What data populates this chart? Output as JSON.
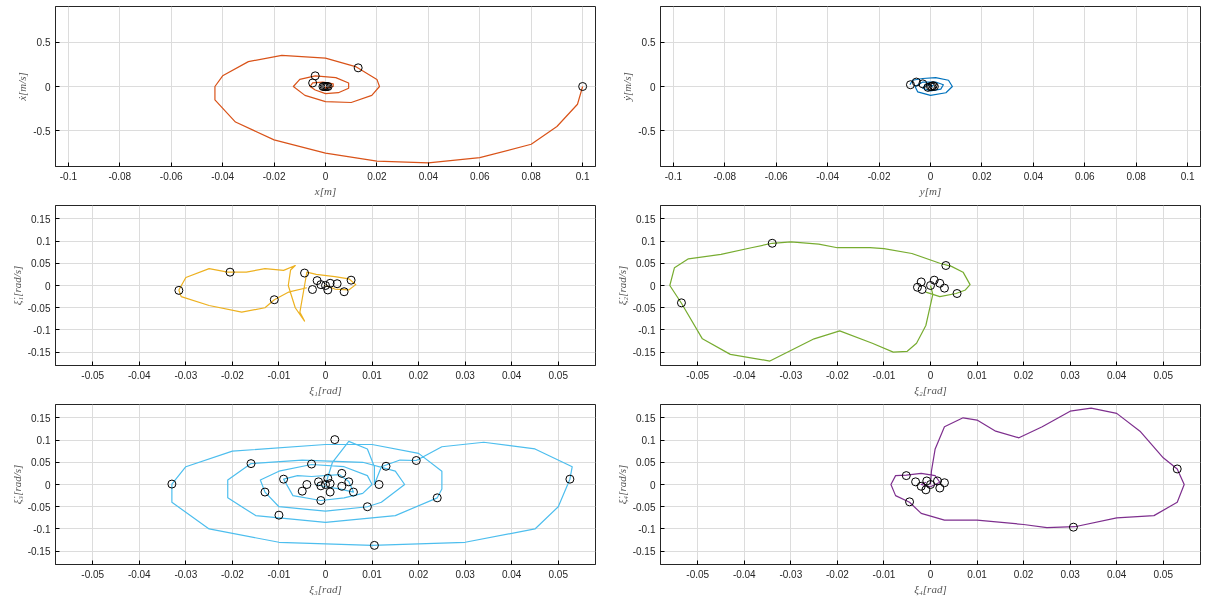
{
  "chart_data": [
    {
      "type": "line",
      "xlabel": "x[m]",
      "ylabel": "ẋ[m/s]",
      "xlim": [
        -0.105,
        0.105
      ],
      "ylim": [
        -0.9,
        0.9
      ],
      "xticks": [
        -0.1,
        -0.08,
        -0.06,
        -0.04,
        -0.02,
        0,
        0.02,
        0.04,
        0.06,
        0.08,
        0.1
      ],
      "yticks": [
        -0.5,
        0,
        0.5
      ],
      "grid": true,
      "series": [
        {
          "type": "line",
          "color": "#d95319",
          "x": [
            0.1,
            0.098,
            0.09,
            0.08,
            0.06,
            0.04,
            0.02,
            0,
            -0.02,
            -0.035,
            -0.043,
            -0.043,
            -0.04,
            -0.03,
            -0.017,
            0,
            0.012,
            0.02,
            0.021,
            0.018,
            0.01,
            0,
            -0.008,
            -0.0125,
            -0.01,
            -0.004,
            0.004,
            0.009,
            0.009,
            0.005,
            0,
            -0.004,
            -0.006,
            -0.005,
            -0.001,
            0.003,
            0.003,
            0,
            0
          ],
          "values": [
            0,
            -0.2,
            -0.45,
            -0.65,
            -0.8,
            -0.86,
            -0.84,
            -0.75,
            -0.6,
            -0.4,
            -0.15,
            0,
            0.12,
            0.28,
            0.35,
            0.32,
            0.22,
            0.08,
            0,
            -0.1,
            -0.18,
            -0.17,
            -0.1,
            0,
            0.08,
            0.12,
            0.1,
            0.04,
            -0.02,
            -0.07,
            -0.08,
            -0.04,
            0,
            0.04,
            0.05,
            0.03,
            0,
            -0.02,
            0
          ]
        },
        {
          "type": "scatter",
          "color": "#000000",
          "marker": "circle",
          "x": [
            0.1,
            0.0127,
            -0.004,
            -0.005,
            0,
            0.0005,
            -0.0005,
            0.001,
            -0.001
          ],
          "values": [
            0,
            0.21,
            0.12,
            0.04,
            0,
            0,
            0,
            0,
            0
          ]
        }
      ]
    },
    {
      "type": "line",
      "xlabel": "y[m]",
      "ylabel": "ẏ[m/s]",
      "xlim": [
        -0.105,
        0.105
      ],
      "ylim": [
        -0.9,
        0.9
      ],
      "xticks": [
        -0.1,
        -0.08,
        -0.06,
        -0.04,
        -0.02,
        0,
        0.02,
        0.04,
        0.06,
        0.08,
        0.1
      ],
      "yticks": [
        -0.5,
        0,
        0.5
      ],
      "grid": true,
      "series": [
        {
          "type": "line",
          "color": "#0072bd",
          "x": [
            -0.008,
            -0.007,
            -0.003,
            0.002,
            0.007,
            0.0085,
            0.006,
            0,
            -0.005,
            -0.006,
            -0.003,
            0.002,
            0.005,
            0.004,
            0,
            -0.003,
            -0.002,
            0.001,
            0
          ],
          "values": [
            0.02,
            0.07,
            0.09,
            0.1,
            0.07,
            0,
            -0.07,
            -0.1,
            -0.06,
            0,
            0.05,
            0.05,
            0.02,
            -0.03,
            -0.05,
            -0.02,
            0.02,
            0.01,
            0
          ]
        },
        {
          "type": "scatter",
          "color": "#000000",
          "marker": "circle",
          "x": [
            -0.0078,
            -0.0055,
            -0.003,
            0,
            0.001,
            -0.001,
            0.0015,
            0.0005
          ],
          "values": [
            0.02,
            0.05,
            0.03,
            0,
            0.01,
            -0.01,
            0,
            0
          ]
        }
      ]
    },
    {
      "type": "line",
      "xlabel": "ξ₁[rad]",
      "ylabel": "ξ̇₁[rad/s]",
      "xlim": [
        -0.058,
        0.058
      ],
      "ylim": [
        -0.18,
        0.18
      ],
      "xticks": [
        -0.05,
        -0.04,
        -0.03,
        -0.02,
        -0.01,
        0,
        0.01,
        0.02,
        0.03,
        0.04,
        0.05
      ],
      "yticks": [
        -0.15,
        -0.1,
        -0.05,
        0,
        0.05,
        0.1,
        0.15
      ],
      "grid": true,
      "series": [
        {
          "type": "line",
          "color": "#edb120",
          "x": [
            0,
            0.002,
            0.005,
            0.0065,
            0.005,
            0.002,
            -0.002,
            -0.004,
            -0.0045,
            -0.0055,
            -0.0045,
            -0.0065,
            -0.008,
            -0.0075,
            -0.0065,
            -0.009,
            -0.013,
            -0.017,
            -0.021,
            -0.025,
            -0.03,
            -0.0315,
            -0.031,
            -0.025,
            -0.018,
            -0.013,
            -0.011,
            -0.008,
            -0.004
          ],
          "values": [
            0,
            -0.008,
            -0.01,
            0.002,
            0.015,
            0.02,
            0.025,
            0.03,
            0,
            -0.06,
            -0.08,
            -0.05,
            0,
            0.035,
            0.045,
            0.034,
            0.038,
            0.03,
            0.03,
            0.038,
            0.018,
            -0.01,
            -0.025,
            -0.045,
            -0.06,
            -0.05,
            -0.032,
            -0.015,
            -0.005
          ]
        },
        {
          "type": "scatter",
          "color": "#000000",
          "marker": "circle",
          "x": [
            -0.0315,
            -0.0205,
            -0.011,
            -0.0045,
            0.0055,
            0.004,
            0.0025,
            -0.0018,
            -0.0028,
            0,
            0.0005,
            0.001,
            -0.001
          ],
          "values": [
            -0.011,
            0.03,
            -0.032,
            0.028,
            0.012,
            -0.014,
            0.004,
            0.011,
            -0.009,
            0,
            -0.01,
            0.005,
            0.002
          ]
        }
      ]
    },
    {
      "type": "line",
      "xlabel": "ξ₂[rad]",
      "ylabel": "ξ̇₂[rad/s]",
      "xlim": [
        -0.058,
        0.058
      ],
      "ylim": [
        -0.18,
        0.18
      ],
      "xticks": [
        -0.05,
        -0.04,
        -0.03,
        -0.02,
        -0.01,
        0,
        0.01,
        0.02,
        0.03,
        0.04,
        0.05
      ],
      "yticks": [
        -0.15,
        -0.1,
        -0.05,
        0,
        0.05,
        0.1,
        0.15
      ],
      "grid": true,
      "series": [
        {
          "type": "line",
          "color": "#77ac30",
          "x": [
            0,
            0.0005,
            -0.001,
            -0.003,
            -0.005,
            -0.008,
            -0.0125,
            -0.0195,
            -0.025,
            -0.0345,
            -0.043,
            -0.049,
            -0.0535,
            -0.056,
            -0.055,
            -0.052,
            -0.045,
            -0.0385,
            -0.034,
            -0.03,
            -0.024,
            -0.02,
            -0.013,
            -0.01,
            -0.004,
            0.002,
            0.0045,
            0.007,
            0.0085,
            0.0075,
            0.0055,
            0.002,
            -0.001
          ],
          "values": [
            0,
            -0.02,
            -0.09,
            -0.13,
            -0.148,
            -0.15,
            -0.13,
            -0.102,
            -0.12,
            -0.17,
            -0.155,
            -0.12,
            -0.04,
            0,
            0.04,
            0.06,
            0.07,
            0.085,
            0.095,
            0.098,
            0.093,
            0.085,
            0.085,
            0.083,
            0.072,
            0.05,
            0.043,
            0.03,
            0.002,
            -0.01,
            -0.018,
            -0.025,
            -0.015
          ]
        },
        {
          "type": "scatter",
          "color": "#000000",
          "marker": "circle",
          "x": [
            -0.0535,
            -0.034,
            0.0033,
            0.0057,
            -0.002,
            0.0008,
            -0.0028,
            0.003,
            -0.0018,
            0,
            0.002
          ],
          "values": [
            -0.039,
            0.095,
            0.045,
            -0.018,
            0.008,
            0.012,
            -0.004,
            -0.006,
            -0.009,
            0,
            0.005
          ]
        }
      ]
    },
    {
      "type": "line",
      "xlabel": "ξ₃[rad]",
      "ylabel": "ξ̇₃[rad/s]",
      "xlim": [
        -0.058,
        0.058
      ],
      "ylim": [
        -0.18,
        0.18
      ],
      "xticks": [
        -0.05,
        -0.04,
        -0.03,
        -0.02,
        -0.01,
        0,
        0.01,
        0.02,
        0.03,
        0.04,
        0.05
      ],
      "yticks": [
        -0.15,
        -0.1,
        -0.05,
        0,
        0.05,
        0.1,
        0.15
      ],
      "grid": true,
      "series": [
        {
          "type": "line",
          "color": "#4dbeee",
          "x": [
            0,
            0.0015,
            0.005,
            0.009,
            0.0105,
            0.0105,
            0.012,
            0.016,
            0.0195,
            0.025,
            0.034,
            0.045,
            0.053,
            0.0525,
            0.05,
            0.045,
            0.03,
            0.01,
            -0.01,
            -0.025,
            -0.033,
            -0.033,
            -0.03,
            -0.02,
            0,
            0.01,
            0.02,
            0.025,
            0.025,
            0.024,
            0.015,
            0,
            -0.015,
            -0.021,
            -0.021,
            -0.016,
            -0.005,
            0.008,
            0.015,
            0.017,
            0.012,
            0.009,
            0,
            -0.01,
            -0.013,
            -0.014,
            -0.01,
            -0.003,
            0.004,
            0.009,
            0.01,
            0.008,
            0.004,
            -0.001,
            -0.007,
            -0.009,
            -0.006,
            -0.003,
            0.003,
            0.005,
            0.006,
            0.003,
            0,
            -0.002
          ],
          "values": [
            0,
            0.05,
            0.097,
            0.08,
            0.04,
            0.0,
            0.04,
            0.055,
            0.054,
            0.085,
            0.095,
            0.08,
            0.04,
            0.012,
            -0.05,
            -0.1,
            -0.13,
            -0.137,
            -0.13,
            -0.1,
            -0.04,
            0.001,
            0.04,
            0.075,
            0.09,
            0.09,
            0.07,
            0.03,
            -0.01,
            -0.03,
            -0.07,
            -0.085,
            -0.07,
            -0.03,
            0.01,
            0.047,
            0.055,
            0.05,
            0.03,
            0,
            -0.04,
            -0.05,
            -0.06,
            -0.05,
            -0.017,
            0.01,
            0.03,
            0.045,
            0.04,
            0.02,
            0,
            -0.02,
            -0.03,
            -0.036,
            -0.025,
            0.012,
            0.02,
            0.018,
            0.022,
            0.007,
            -0.017,
            -0.01,
            -0.005,
            0
          ]
        },
        {
          "type": "scatter",
          "color": "#000000",
          "marker": "circle",
          "x": [
            -0.033,
            -0.016,
            0.002,
            0.0195,
            0.0525,
            0.024,
            0.0105,
            -0.01,
            -0.013,
            -0.009,
            -0.003,
            0.0035,
            0.013,
            0.0115,
            0.009,
            0.006,
            -0.001,
            -0.005,
            -0.004,
            0.005,
            0.0035,
            0.001,
            -0.0015,
            0.0005,
            0,
            0.001,
            -0.001
          ],
          "values": [
            0.001,
            0.047,
            0.101,
            0.054,
            0.012,
            -0.03,
            -0.137,
            -0.069,
            -0.017,
            0.012,
            0.046,
            0.025,
            0.041,
            0,
            -0.05,
            -0.017,
            -0.036,
            -0.015,
            0,
            0.006,
            -0.004,
            -0.017,
            0.006,
            0.014,
            0,
            0.002,
            -0.003
          ]
        }
      ]
    },
    {
      "type": "line",
      "xlabel": "ξ₄[rad]",
      "ylabel": "ξ̇₄[rad/s]",
      "xlim": [
        -0.058,
        0.058
      ],
      "ylim": [
        -0.18,
        0.18
      ],
      "xticks": [
        -0.05,
        -0.04,
        -0.03,
        -0.02,
        -0.01,
        0,
        0.01,
        0.02,
        0.03,
        0.04,
        0.05
      ],
      "yticks": [
        -0.15,
        -0.1,
        -0.05,
        0,
        0.05,
        0.1,
        0.15
      ],
      "grid": true,
      "series": [
        {
          "type": "line",
          "color": "#7e2f8e",
          "x": [
            0,
            0.0002,
            0.001,
            0.003,
            0.007,
            0.01,
            0.014,
            0.019,
            0.024,
            0.03,
            0.0345,
            0.04,
            0.045,
            0.05,
            0.053,
            0.0545,
            0.053,
            0.048,
            0.04,
            0.031,
            0.025,
            0.02,
            0.01,
            0.003,
            -0.002,
            -0.0045,
            -0.0075,
            -0.0085,
            -0.0075,
            -0.0052,
            -0.002,
            0.001,
            0.002,
            0,
            -0.002,
            -0.001
          ],
          "values": [
            0,
            0.03,
            0.08,
            0.13,
            0.15,
            0.145,
            0.12,
            0.105,
            0.13,
            0.165,
            0.172,
            0.16,
            0.12,
            0.06,
            0.035,
            0,
            -0.04,
            -0.07,
            -0.075,
            -0.095,
            -0.097,
            -0.09,
            -0.08,
            -0.08,
            -0.065,
            -0.04,
            -0.025,
            0,
            0.02,
            0.021,
            0.025,
            0.02,
            0.005,
            -0.005,
            0,
            0.005
          ]
        },
        {
          "type": "scatter",
          "color": "#000000",
          "marker": "circle",
          "x": [
            0.053,
            0.0307,
            -0.0045,
            -0.0052,
            -0.0032,
            0.003,
            0.002,
            -0.001,
            -0.002,
            0,
            0.0015,
            -0.0008
          ],
          "values": [
            0.035,
            -0.096,
            -0.039,
            0.02,
            0.006,
            0.004,
            -0.008,
            -0.012,
            -0.004,
            0,
            0.008,
            0.008
          ]
        }
      ]
    }
  ]
}
